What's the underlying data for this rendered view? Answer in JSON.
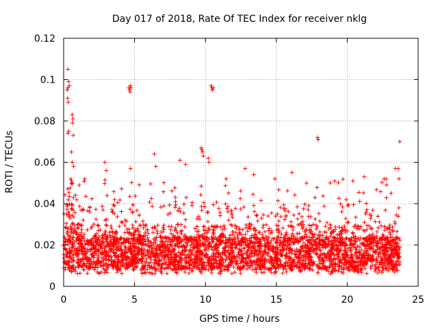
{
  "chart_data": {
    "type": "scatter",
    "title": "Day 017 of 2018, Rate Of TEC Index for receiver nklg",
    "xlabel": "GPS time / hours",
    "ylabel": "ROTI / TECUs",
    "xlim": [
      0,
      25
    ],
    "ylim": [
      0,
      0.12
    ],
    "xticks": [
      0,
      5,
      10,
      15,
      20,
      25
    ],
    "xtick_labels": [
      "0",
      "5",
      "10",
      "15",
      "20",
      "25"
    ],
    "yticks": [
      0,
      0.02,
      0.04,
      0.06,
      0.08,
      0.1,
      0.12
    ],
    "ytick_labels": [
      "0",
      "0.02",
      "0.04",
      "0.06",
      "0.08",
      "0.1",
      "0.12"
    ],
    "grid": true,
    "marker": "plus",
    "marker_color": "#ff0000",
    "series": [
      {
        "name": "ROTI",
        "note": "dense band of points; baseline ~0.010–0.025 TECU/s across 0–23.7 h",
        "x": [
          0.2,
          0.3,
          0.35,
          0.4,
          0.45,
          0.3,
          0.35,
          0.4,
          0.25,
          0.3,
          0.28,
          0.32,
          0.3,
          0.35,
          0.6,
          0.65,
          0.62,
          0.68,
          0.55,
          0.6,
          0.7,
          0.5,
          0.55,
          0.6,
          4.6,
          4.65,
          4.7,
          4.75,
          4.68,
          4.72,
          10.4,
          10.45,
          10.5,
          10.55,
          9.7,
          9.75,
          9.8,
          9.85,
          10.2,
          10.25,
          17.9,
          17.95,
          23.7,
          23.6,
          23.65,
          2.9,
          3.0,
          6.4,
          6.5,
          8.2,
          8.6,
          12.8,
          13.4,
          14.9,
          16.1,
          18.8,
          20.4,
          21.2,
          22.6,
          23.4
        ],
        "y": [
          0.035,
          0.034,
          0.036,
          0.034,
          0.033,
          0.105,
          0.099,
          0.097,
          0.095,
          0.096,
          0.091,
          0.089,
          0.074,
          0.075,
          0.083,
          0.081,
          0.079,
          0.073,
          0.065,
          0.06,
          0.058,
          0.052,
          0.051,
          0.05,
          0.096,
          0.095,
          0.097,
          0.096,
          0.094,
          0.057,
          0.097,
          0.096,
          0.095,
          0.096,
          0.067,
          0.066,
          0.065,
          0.063,
          0.062,
          0.06,
          0.072,
          0.071,
          0.07,
          0.057,
          0.052,
          0.06,
          0.056,
          0.064,
          0.058,
          0.061,
          0.059,
          0.057,
          0.054,
          0.052,
          0.055,
          0.05,
          0.051,
          0.053,
          0.052,
          0.057
        ]
      }
    ]
  }
}
